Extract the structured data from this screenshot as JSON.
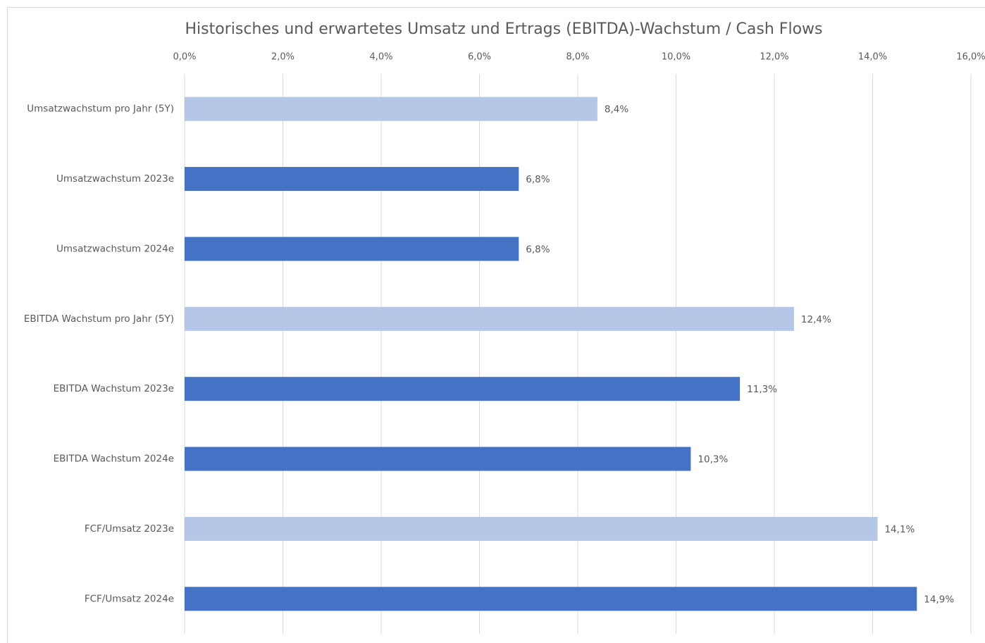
{
  "chart_data": {
    "type": "hbar",
    "title": "Historisches und erwartetes Umsatz und Ertrags (EBITDA)-Wachstum / Cash Flows",
    "categories": [
      "Umsatzwachstum pro Jahr (5Y)",
      "Umsatzwachstum 2023e",
      "Umsatzwachstum 2024e",
      "EBITDA Wachstum pro Jahr (5Y)",
      "EBITDA Wachstum 2023e",
      "EBITDA Wachstum 2024e",
      "FCF/Umsatz 2023e",
      "FCF/Umsatz 2024e"
    ],
    "values": [
      8.4,
      6.8,
      6.8,
      12.4,
      11.3,
      10.3,
      14.1,
      14.9
    ],
    "value_labels": [
      "8,4%",
      "6,8%",
      "6,8%",
      "12,4%",
      "11,3%",
      "10,3%",
      "14,1%",
      "14,9%"
    ],
    "colors": [
      "#b4c7e7",
      "#4472c4",
      "#4472c4",
      "#b4c7e7",
      "#4472c4",
      "#4472c4",
      "#b4c7e7",
      "#4472c4"
    ],
    "xlim": [
      0,
      16
    ],
    "xticks": [
      {
        "value": 0,
        "label": "0,0%"
      },
      {
        "value": 2,
        "label": "2,0%"
      },
      {
        "value": 4,
        "label": "4,0%"
      },
      {
        "value": 6,
        "label": "6,0%"
      },
      {
        "value": 8,
        "label": "8,0%"
      },
      {
        "value": 10,
        "label": "10,0%"
      },
      {
        "value": 12,
        "label": "12,0%"
      },
      {
        "value": 14,
        "label": "14,0%"
      },
      {
        "value": 16,
        "label": "16,0%"
      }
    ],
    "grid": true
  }
}
